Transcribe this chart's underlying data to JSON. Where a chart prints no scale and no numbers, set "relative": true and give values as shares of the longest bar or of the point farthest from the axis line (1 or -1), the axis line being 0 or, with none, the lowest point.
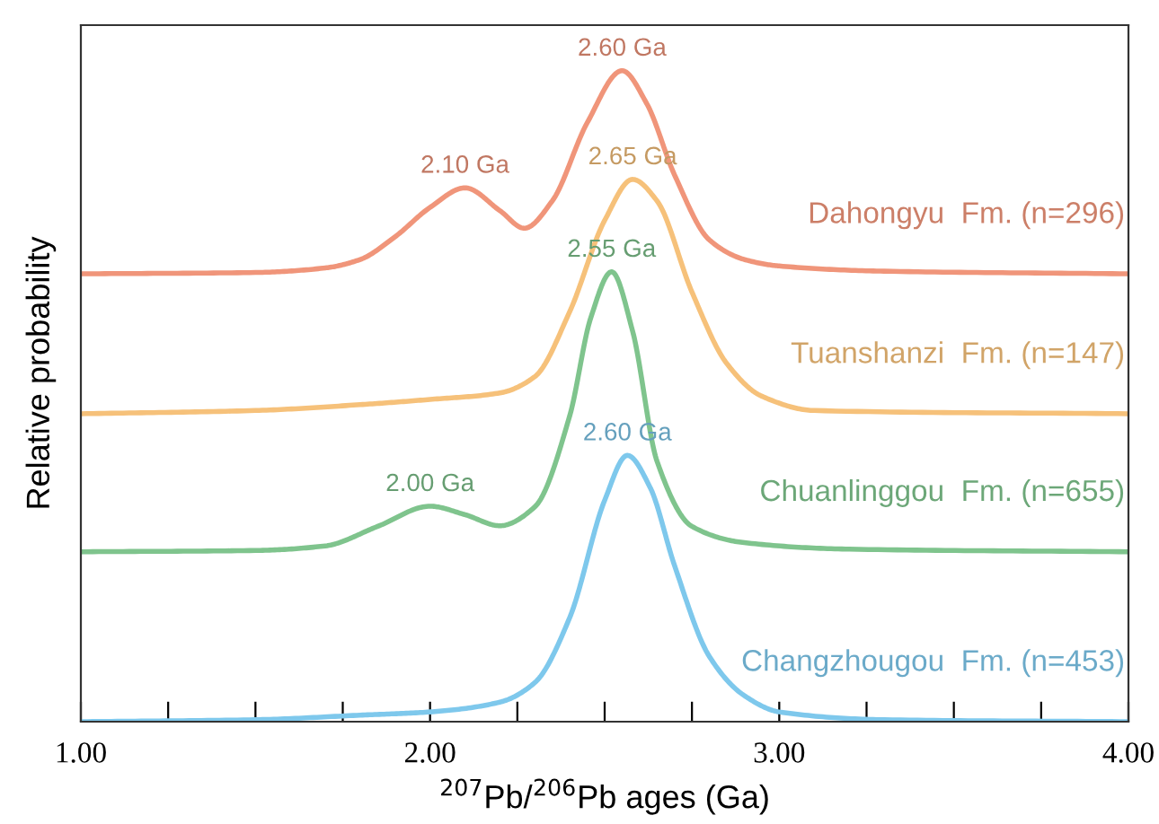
{
  "chart_data": {
    "type": "line",
    "relative": true,
    "xlabel": "$^{207}$Pb/$^{206}$Pb ages (Ga)",
    "ylabel": "Relative probability",
    "xlim": [
      1.0,
      4.0
    ],
    "xticks": [
      {
        "value": 1.0,
        "label": "1.00"
      },
      {
        "value": 1.25,
        "label": null
      },
      {
        "value": 1.5,
        "label": null
      },
      {
        "value": 1.75,
        "label": null
      },
      {
        "value": 2.0,
        "label": "2.00"
      },
      {
        "value": 2.25,
        "label": null
      },
      {
        "value": 2.5,
        "label": null
      },
      {
        "value": 2.75,
        "label": null
      },
      {
        "value": 3.0,
        "label": "3.00"
      },
      {
        "value": 3.25,
        "label": null
      },
      {
        "value": 3.5,
        "label": null
      },
      {
        "value": 3.75,
        "label": null
      },
      {
        "value": 4.0,
        "label": "4.00"
      }
    ],
    "grid": false,
    "legend": false,
    "tick_labels": "x",
    "series": [
      {
        "name": "Dahongyu  Fm. (n=296)",
        "color": "#f0957a",
        "x": [
          1.0,
          1.5,
          1.7,
          1.8,
          1.9,
          2.0,
          2.1,
          2.2,
          2.27,
          2.35,
          2.45,
          2.55,
          2.62,
          2.7,
          2.8,
          2.9,
          3.0,
          3.3,
          4.0
        ],
        "values": [
          0.688,
          0.69,
          0.697,
          0.71,
          0.745,
          0.79,
          0.82,
          0.785,
          0.758,
          0.8,
          0.92,
          1.0,
          0.95,
          0.84,
          0.74,
          0.71,
          0.7,
          0.692,
          0.688
        ]
      },
      {
        "name": "Tuanshanzi  Fm. (n=147)",
        "color": "#f6c17a",
        "x": [
          1.0,
          1.5,
          1.8,
          2.0,
          2.2,
          2.3,
          2.4,
          2.5,
          2.58,
          2.65,
          2.75,
          2.85,
          2.95,
          3.1,
          4.0
        ],
        "values": [
          0.473,
          0.478,
          0.487,
          0.495,
          0.505,
          0.53,
          0.63,
          0.77,
          0.833,
          0.8,
          0.66,
          0.55,
          0.5,
          0.478,
          0.473
        ]
      },
      {
        "name": "Chuanlinggou  Fm. (n=655)",
        "color": "#7fc48d",
        "x": [
          1.0,
          1.5,
          1.7,
          1.85,
          2.0,
          2.1,
          2.2,
          2.3,
          2.4,
          2.46,
          2.52,
          2.58,
          2.65,
          2.75,
          2.9,
          3.2,
          4.0
        ],
        "values": [
          0.261,
          0.263,
          0.27,
          0.3,
          0.331,
          0.318,
          0.301,
          0.33,
          0.47,
          0.62,
          0.691,
          0.6,
          0.4,
          0.3,
          0.275,
          0.265,
          0.261
        ]
      },
      {
        "name": "Changzhougou  Fm. (n=453)",
        "color": "#7ec8ec",
        "x": [
          1.0,
          1.5,
          1.8,
          2.0,
          2.2,
          2.3,
          2.4,
          2.5,
          2.565,
          2.63,
          2.7,
          2.8,
          2.9,
          3.0,
          3.3,
          4.0
        ],
        "values": [
          0.0,
          0.003,
          0.01,
          0.015,
          0.03,
          0.06,
          0.16,
          0.34,
          0.409,
          0.36,
          0.24,
          0.1,
          0.04,
          0.015,
          0.003,
          0.0
        ]
      }
    ],
    "annotations": [
      {
        "text": "2.60 Ga",
        "x": 2.55,
        "y": 1.0
      },
      {
        "text": "2.10 Ga",
        "x": 2.1,
        "y": 0.82
      },
      {
        "text": "2.65 Ga",
        "x": 2.58,
        "y": 0.833
      },
      {
        "text": "2.55 Ga",
        "x": 2.52,
        "y": 0.691
      },
      {
        "text": "2.00 Ga",
        "x": 2.0,
        "y": 0.331
      },
      {
        "text": "2.60 Ga",
        "x": 2.565,
        "y": 0.409
      }
    ]
  }
}
